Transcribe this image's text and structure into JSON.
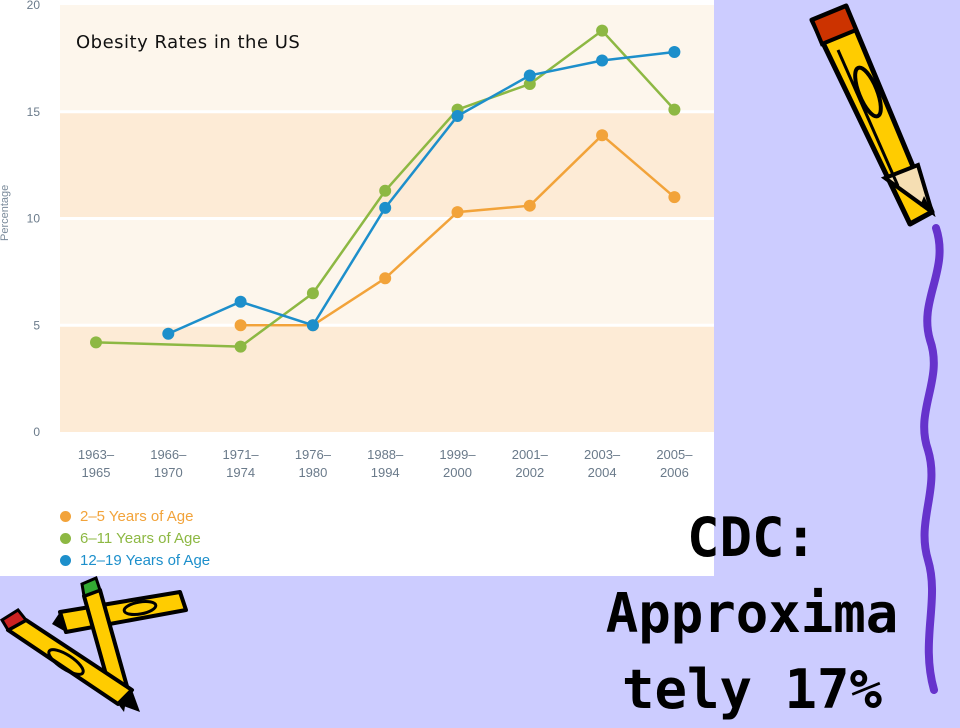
{
  "chart_data": {
    "type": "line",
    "title": "Obesity Rates in the US",
    "ylabel": "Percentage",
    "xlabel": "",
    "ylim": [
      0,
      20
    ],
    "yticks": [
      0,
      5,
      10,
      15,
      20
    ],
    "grid": true,
    "legend_placement": "bottom-left",
    "categories": [
      [
        "1963–",
        "1965"
      ],
      [
        "1966–",
        "1970"
      ],
      [
        "1971–",
        "1974"
      ],
      [
        "1976–",
        "1980"
      ],
      [
        "1988–",
        "1994"
      ],
      [
        "1999–",
        "2000"
      ],
      [
        "2001–",
        "2002"
      ],
      [
        "2003–",
        "2004"
      ],
      [
        "2005–",
        "2006"
      ]
    ],
    "series": [
      {
        "name": "2–5 Years of Age",
        "color": "#f2a33a",
        "values": [
          null,
          null,
          5.0,
          5.0,
          7.2,
          10.3,
          10.6,
          13.9,
          11.0
        ]
      },
      {
        "name": "6–11 Years of Age",
        "color": "#8db843",
        "values": [
          4.2,
          null,
          4.0,
          6.5,
          11.3,
          15.1,
          16.3,
          18.8,
          15.1
        ]
      },
      {
        "name": "12–19 Years of Age",
        "color": "#1d8fcb",
        "values": [
          null,
          4.6,
          6.1,
          5.0,
          10.5,
          14.8,
          16.7,
          17.4,
          17.8
        ]
      }
    ]
  },
  "caption": {
    "lines": [
      "CDC:",
      "Approxima",
      "tely 17%"
    ]
  }
}
